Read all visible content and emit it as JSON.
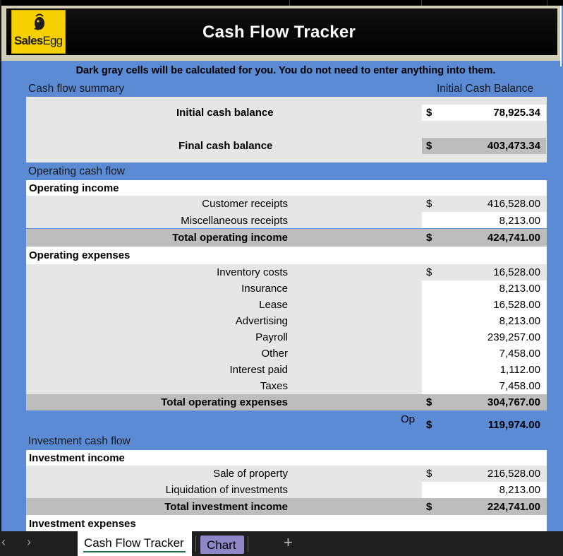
{
  "header": {
    "title": "Cash Flow Tracker",
    "logo_text_bold": "Sales",
    "logo_text_light": "Egg"
  },
  "note": "Dark gray cells will be calculated for you. You do not need to enter anything into them.",
  "summary": {
    "section_label": "Cash flow summary",
    "right_label": "Initial Cash Balance",
    "initial_label": "Initial cash balance",
    "initial_dollar": "$",
    "initial_value": "78,925.34",
    "final_label": "Final cash balance",
    "final_dollar": "$",
    "final_value": "403,473.34"
  },
  "operating": {
    "section_label": "Operating cash flow",
    "income_header": "Operating income",
    "income_items": [
      {
        "label": "Customer receipts",
        "dollar": "$",
        "value": "416,528.00"
      },
      {
        "label": "Miscellaneous receipts",
        "dollar": "",
        "value": "8,213.00"
      }
    ],
    "income_total_label": "Total operating income",
    "income_total_dollar": "$",
    "income_total_value": "424,741.00",
    "expenses_header": "Operating expenses",
    "expense_items": [
      {
        "label": "Inventory costs",
        "dollar": "$",
        "value": "16,528.00"
      },
      {
        "label": "Insurance",
        "dollar": "",
        "value": "8,213.00"
      },
      {
        "label": "Lease",
        "dollar": "",
        "value": "16,528.00"
      },
      {
        "label": "Advertising",
        "dollar": "",
        "value": "8,213.00"
      },
      {
        "label": "Payroll",
        "dollar": "",
        "value": "239,257.00"
      },
      {
        "label": "Other",
        "dollar": "",
        "value": "7,458.00"
      },
      {
        "label": "Interest paid",
        "dollar": "",
        "value": "1,112.00"
      },
      {
        "label": "Taxes",
        "dollar": "",
        "value": "7,458.00"
      }
    ],
    "expenses_total_label": "Total operating expenses",
    "expenses_total_dollar": "$",
    "expenses_total_value": "304,767.00",
    "net_label": "Op",
    "net_dollar": "$",
    "net_value": "119,974.00"
  },
  "investment": {
    "section_label": "Investment cash flow",
    "income_header": "Investment income",
    "income_items": [
      {
        "label": "Sale of property",
        "dollar": "$",
        "value": "216,528.00"
      },
      {
        "label": "Liquidation of investments",
        "dollar": "",
        "value": "8,213.00"
      }
    ],
    "income_total_label": "Total investment income",
    "income_total_dollar": "$",
    "income_total_value": "224,741.00",
    "expenses_header": "Investment expenses"
  },
  "tabs": {
    "active": "Cash Flow Tracker",
    "chart": "Chart",
    "add": "+",
    "prev_arrow": "‹",
    "next_arrow": "›"
  }
}
